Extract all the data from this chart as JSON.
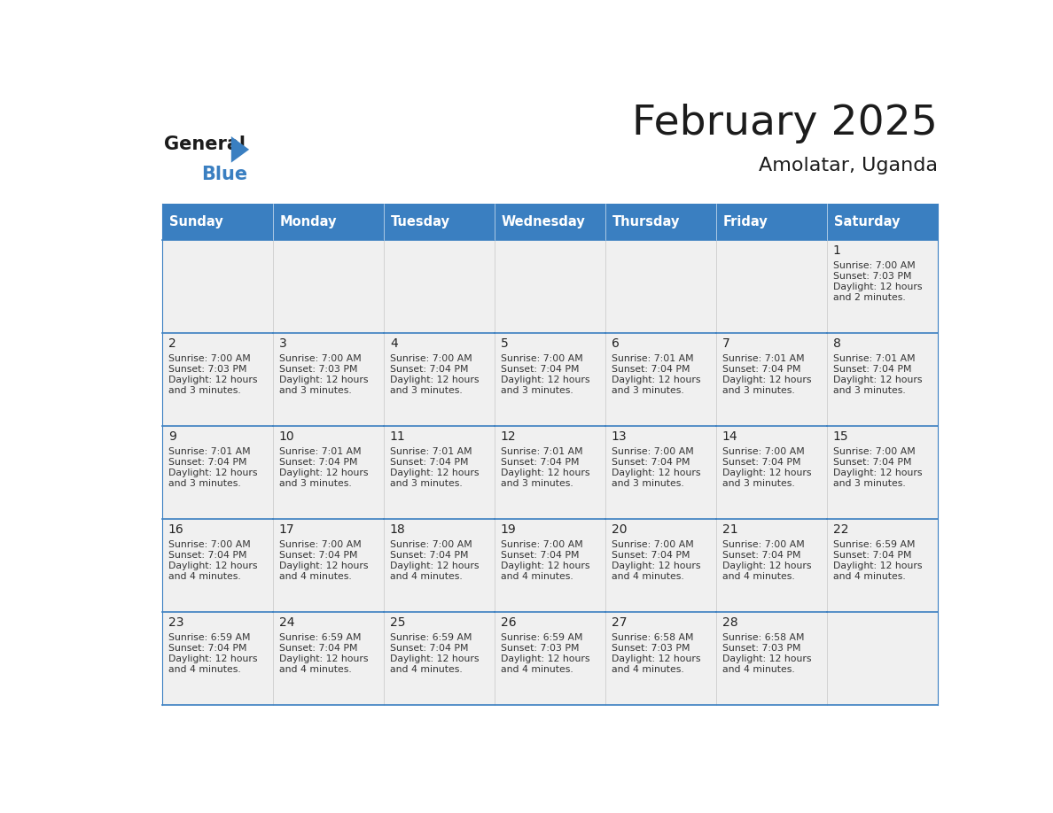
{
  "title": "February 2025",
  "subtitle": "Amolatar, Uganda",
  "header_color": "#3A7FC1",
  "header_text_color": "#FFFFFF",
  "cell_bg_even": "#EFEFEF",
  "cell_bg_odd": "#FFFFFF",
  "day_text_color": "#333333",
  "info_text_color": "#444444",
  "line_color": "#3A7FC1",
  "days_of_week": [
    "Sunday",
    "Monday",
    "Tuesday",
    "Wednesday",
    "Thursday",
    "Friday",
    "Saturday"
  ],
  "calendar_data": [
    [
      null,
      null,
      null,
      null,
      null,
      null,
      {
        "day": 1,
        "sunrise": "7:00 AM",
        "sunset": "7:03 PM",
        "daylight": "12 hours and 2 minutes."
      }
    ],
    [
      {
        "day": 2,
        "sunrise": "7:00 AM",
        "sunset": "7:03 PM",
        "daylight": "12 hours and 3 minutes."
      },
      {
        "day": 3,
        "sunrise": "7:00 AM",
        "sunset": "7:03 PM",
        "daylight": "12 hours and 3 minutes."
      },
      {
        "day": 4,
        "sunrise": "7:00 AM",
        "sunset": "7:04 PM",
        "daylight": "12 hours and 3 minutes."
      },
      {
        "day": 5,
        "sunrise": "7:00 AM",
        "sunset": "7:04 PM",
        "daylight": "12 hours and 3 minutes."
      },
      {
        "day": 6,
        "sunrise": "7:01 AM",
        "sunset": "7:04 PM",
        "daylight": "12 hours and 3 minutes."
      },
      {
        "day": 7,
        "sunrise": "7:01 AM",
        "sunset": "7:04 PM",
        "daylight": "12 hours and 3 minutes."
      },
      {
        "day": 8,
        "sunrise": "7:01 AM",
        "sunset": "7:04 PM",
        "daylight": "12 hours and 3 minutes."
      }
    ],
    [
      {
        "day": 9,
        "sunrise": "7:01 AM",
        "sunset": "7:04 PM",
        "daylight": "12 hours and 3 minutes."
      },
      {
        "day": 10,
        "sunrise": "7:01 AM",
        "sunset": "7:04 PM",
        "daylight": "12 hours and 3 minutes."
      },
      {
        "day": 11,
        "sunrise": "7:01 AM",
        "sunset": "7:04 PM",
        "daylight": "12 hours and 3 minutes."
      },
      {
        "day": 12,
        "sunrise": "7:01 AM",
        "sunset": "7:04 PM",
        "daylight": "12 hours and 3 minutes."
      },
      {
        "day": 13,
        "sunrise": "7:00 AM",
        "sunset": "7:04 PM",
        "daylight": "12 hours and 3 minutes."
      },
      {
        "day": 14,
        "sunrise": "7:00 AM",
        "sunset": "7:04 PM",
        "daylight": "12 hours and 3 minutes."
      },
      {
        "day": 15,
        "sunrise": "7:00 AM",
        "sunset": "7:04 PM",
        "daylight": "12 hours and 3 minutes."
      }
    ],
    [
      {
        "day": 16,
        "sunrise": "7:00 AM",
        "sunset": "7:04 PM",
        "daylight": "12 hours and 4 minutes."
      },
      {
        "day": 17,
        "sunrise": "7:00 AM",
        "sunset": "7:04 PM",
        "daylight": "12 hours and 4 minutes."
      },
      {
        "day": 18,
        "sunrise": "7:00 AM",
        "sunset": "7:04 PM",
        "daylight": "12 hours and 4 minutes."
      },
      {
        "day": 19,
        "sunrise": "7:00 AM",
        "sunset": "7:04 PM",
        "daylight": "12 hours and 4 minutes."
      },
      {
        "day": 20,
        "sunrise": "7:00 AM",
        "sunset": "7:04 PM",
        "daylight": "12 hours and 4 minutes."
      },
      {
        "day": 21,
        "sunrise": "7:00 AM",
        "sunset": "7:04 PM",
        "daylight": "12 hours and 4 minutes."
      },
      {
        "day": 22,
        "sunrise": "6:59 AM",
        "sunset": "7:04 PM",
        "daylight": "12 hours and 4 minutes."
      }
    ],
    [
      {
        "day": 23,
        "sunrise": "6:59 AM",
        "sunset": "7:04 PM",
        "daylight": "12 hours and 4 minutes."
      },
      {
        "day": 24,
        "sunrise": "6:59 AM",
        "sunset": "7:04 PM",
        "daylight": "12 hours and 4 minutes."
      },
      {
        "day": 25,
        "sunrise": "6:59 AM",
        "sunset": "7:04 PM",
        "daylight": "12 hours and 4 minutes."
      },
      {
        "day": 26,
        "sunrise": "6:59 AM",
        "sunset": "7:03 PM",
        "daylight": "12 hours and 4 minutes."
      },
      {
        "day": 27,
        "sunrise": "6:58 AM",
        "sunset": "7:03 PM",
        "daylight": "12 hours and 4 minutes."
      },
      {
        "day": 28,
        "sunrise": "6:58 AM",
        "sunset": "7:03 PM",
        "daylight": "12 hours and 4 minutes."
      },
      null
    ]
  ]
}
